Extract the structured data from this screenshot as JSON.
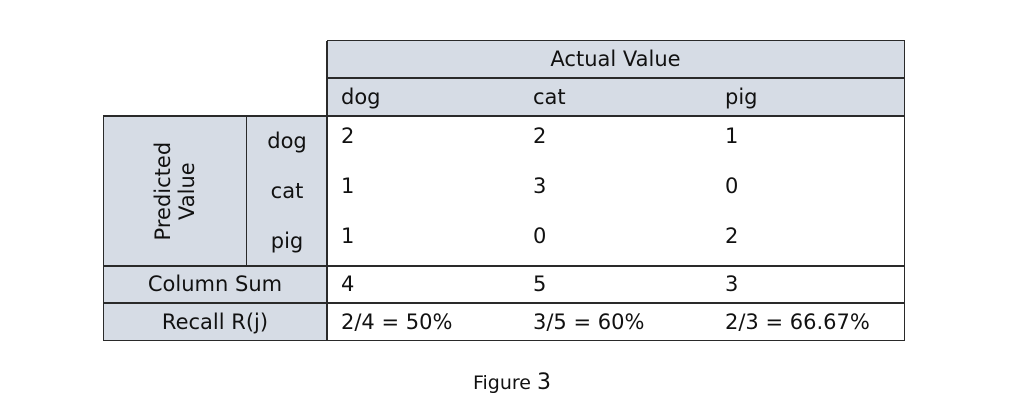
{
  "table": {
    "actual_header": "Actual Value",
    "predicted_header_line1": "Predicted",
    "predicted_header_line2": "Value",
    "columns": [
      "dog",
      "cat",
      "pig"
    ],
    "rows": [
      {
        "label": "dog",
        "values": [
          "2",
          "2",
          "1"
        ]
      },
      {
        "label": "cat",
        "values": [
          "1",
          "3",
          "0"
        ]
      },
      {
        "label": "pig",
        "values": [
          "1",
          "0",
          "2"
        ]
      }
    ],
    "column_sum": {
      "label": "Column Sum",
      "values": [
        "4",
        "5",
        "3"
      ]
    },
    "recall": {
      "label": "Recall R(j)",
      "values": [
        "2/4 = 50%",
        "3/5 = 60%",
        "2/3 = 66.67%"
      ]
    }
  },
  "caption": {
    "text": "Figure",
    "number": "3"
  },
  "colors": {
    "header_shade": "#d6dce5",
    "border": "#2a2a2a"
  }
}
